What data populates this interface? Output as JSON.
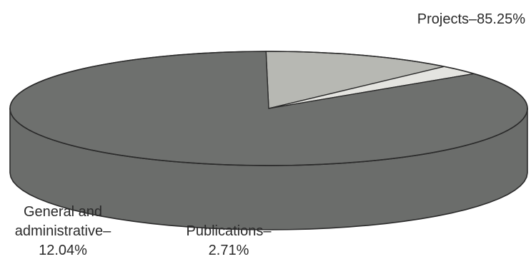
{
  "chart_data": {
    "type": "pie",
    "title": "",
    "style": "3d",
    "slices": [
      {
        "name": "Projects",
        "value": 85.25,
        "label": "Projects–85.25%",
        "color": "#6e706e"
      },
      {
        "name": "General and administrative",
        "value": 12.04,
        "label_lines": [
          "General and",
          "administrative–",
          "12.04%"
        ],
        "color": "#b7b8b3"
      },
      {
        "name": "Publications",
        "value": 2.71,
        "label_lines": [
          "Publications–",
          "2.71%"
        ],
        "color": "#e4e4e0"
      }
    ]
  }
}
